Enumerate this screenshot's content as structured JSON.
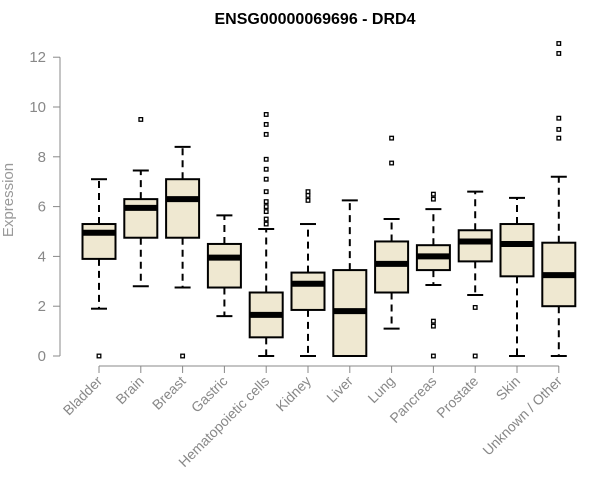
{
  "chart_data": {
    "type": "box",
    "title": "ENSG00000069696 - DRD4",
    "xlabel": "",
    "ylabel": "Expression",
    "ylim": [
      0,
      12.5
    ],
    "yticks": [
      0,
      2,
      4,
      6,
      8,
      10,
      12
    ],
    "colors": {
      "box_fill": "#efe8d1",
      "box_stroke": "#000000",
      "axis": "#888888",
      "tick_label": "#888888"
    },
    "categories": [
      "Bladder",
      "Brain",
      "Breast",
      "Gastric",
      "Hematopoietic cells",
      "Kidney",
      "Liver",
      "Lung",
      "Pancreas",
      "Prostate",
      "Skin",
      "Unknown / Other"
    ],
    "boxes": [
      {
        "label": "Bladder",
        "whisker_low": 1.9,
        "q1": 3.9,
        "median": 4.95,
        "q3": 5.3,
        "whisker_high": 7.1,
        "outliers": [
          0
        ]
      },
      {
        "label": "Brain",
        "whisker_low": 2.8,
        "q1": 4.75,
        "median": 5.95,
        "q3": 6.3,
        "whisker_high": 7.45,
        "outliers": [
          9.5
        ]
      },
      {
        "label": "Breast",
        "whisker_low": 2.75,
        "q1": 4.75,
        "median": 6.3,
        "q3": 7.1,
        "whisker_high": 8.4,
        "outliers": [
          0
        ]
      },
      {
        "label": "Gastric",
        "whisker_low": 1.6,
        "q1": 2.75,
        "median": 3.95,
        "q3": 4.5,
        "whisker_high": 5.65,
        "outliers": []
      },
      {
        "label": "Hematopoietic cells",
        "whisker_low": 0,
        "q1": 0.75,
        "median": 1.65,
        "q3": 2.55,
        "whisker_high": 5.1,
        "outliers": [
          5.3,
          5.5,
          5.8,
          6.0,
          6.2,
          6.6,
          7.1,
          7.5,
          7.9,
          8.9,
          9.3,
          9.7
        ]
      },
      {
        "label": "Kidney",
        "whisker_low": 0,
        "q1": 1.85,
        "median": 2.9,
        "q3": 3.35,
        "whisker_high": 5.3,
        "outliers": [
          6.25,
          6.45,
          6.6
        ]
      },
      {
        "label": "Liver",
        "whisker_low": 0,
        "q1": 0,
        "median": 1.8,
        "q3": 3.45,
        "whisker_high": 6.25,
        "outliers": []
      },
      {
        "label": "Lung",
        "whisker_low": 1.1,
        "q1": 2.55,
        "median": 3.7,
        "q3": 4.6,
        "whisker_high": 5.5,
        "outliers": [
          7.75,
          8.75
        ]
      },
      {
        "label": "Pancreas",
        "whisker_low": 2.85,
        "q1": 3.45,
        "median": 4.0,
        "q3": 4.45,
        "whisker_high": 5.9,
        "outliers": [
          0,
          1.2,
          1.4,
          6.3,
          6.5
        ]
      },
      {
        "label": "Prostate",
        "whisker_low": 2.45,
        "q1": 3.8,
        "median": 4.6,
        "q3": 5.05,
        "whisker_high": 6.6,
        "outliers": [
          0,
          1.95
        ]
      },
      {
        "label": "Skin",
        "whisker_low": 0,
        "q1": 3.2,
        "median": 4.5,
        "q3": 5.3,
        "whisker_high": 6.35,
        "outliers": []
      },
      {
        "label": "Unknown / Other",
        "whisker_low": 0,
        "q1": 2.0,
        "median": 3.25,
        "q3": 4.55,
        "whisker_high": 7.2,
        "outliers": [
          8.75,
          9.1,
          9.55,
          12.15,
          12.55
        ]
      }
    ]
  }
}
